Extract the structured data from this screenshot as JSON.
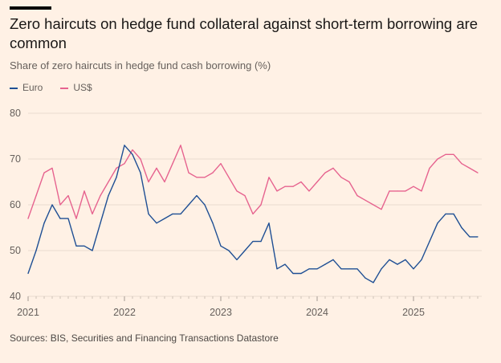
{
  "title": "Zero haircuts on hedge fund collateral against short-term borrowing are common",
  "source": "Sources: BIS, Securities and Financing Transactions Datastore",
  "colors": {
    "background": "#fff1e5",
    "euro": "#1f4f94",
    "usd": "#e6638f"
  },
  "chart_data": {
    "type": "line",
    "title": "Zero haircuts on hedge fund collateral against short-term borrowing are common",
    "subtitle": "Share of zero haircuts in hedge fund cash borrowing (%)",
    "xlabel": "",
    "ylabel": "",
    "ylim": [
      40,
      80
    ],
    "yticks": [
      "40",
      "50",
      "60",
      "70",
      "80"
    ],
    "xticks": [
      "2021",
      "2022",
      "2023",
      "2024",
      "2025"
    ],
    "grid": true,
    "legend": "top-left",
    "x": [
      "2021-01",
      "2021-02",
      "2021-03",
      "2021-04",
      "2021-05",
      "2021-06",
      "2021-07",
      "2021-08",
      "2021-09",
      "2021-10",
      "2021-11",
      "2021-12",
      "2022-01",
      "2022-02",
      "2022-03",
      "2022-04",
      "2022-05",
      "2022-06",
      "2022-07",
      "2022-08",
      "2022-09",
      "2022-10",
      "2022-11",
      "2022-12",
      "2023-01",
      "2023-02",
      "2023-03",
      "2023-04",
      "2023-05",
      "2023-06",
      "2023-07",
      "2023-08",
      "2023-09",
      "2023-10",
      "2023-11",
      "2023-12",
      "2024-01",
      "2024-02",
      "2024-03",
      "2024-04",
      "2024-05",
      "2024-06",
      "2024-07",
      "2024-08",
      "2024-09",
      "2024-10",
      "2024-11",
      "2024-12",
      "2025-01",
      "2025-02",
      "2025-03",
      "2025-04",
      "2025-05",
      "2025-06",
      "2025-07",
      "2025-08",
      "2025-09"
    ],
    "series": [
      {
        "name": "Euro",
        "values": [
          45,
          50,
          56,
          60,
          57,
          57,
          51,
          51,
          50,
          56,
          62,
          66,
          73,
          71,
          67,
          58,
          56,
          57,
          58,
          58,
          60,
          62,
          60,
          56,
          51,
          50,
          48,
          50,
          52,
          52,
          56,
          46,
          47,
          45,
          45,
          46,
          46,
          47,
          48,
          46,
          46,
          46,
          44,
          43,
          46,
          48,
          47,
          48,
          46,
          48,
          52,
          56,
          58,
          58,
          55,
          53,
          53
        ]
      },
      {
        "name": "US$",
        "values": [
          57,
          62,
          67,
          68,
          60,
          62,
          57,
          63,
          58,
          62,
          65,
          68,
          69,
          72,
          70,
          65,
          68,
          65,
          69,
          73,
          67,
          66,
          66,
          67,
          69,
          66,
          63,
          62,
          58,
          60,
          66,
          63,
          64,
          64,
          65,
          63,
          65,
          67,
          68,
          66,
          65,
          62,
          61,
          60,
          59,
          63,
          63,
          63,
          64,
          63,
          68,
          70,
          71,
          71,
          69,
          68,
          67
        ]
      }
    ]
  }
}
